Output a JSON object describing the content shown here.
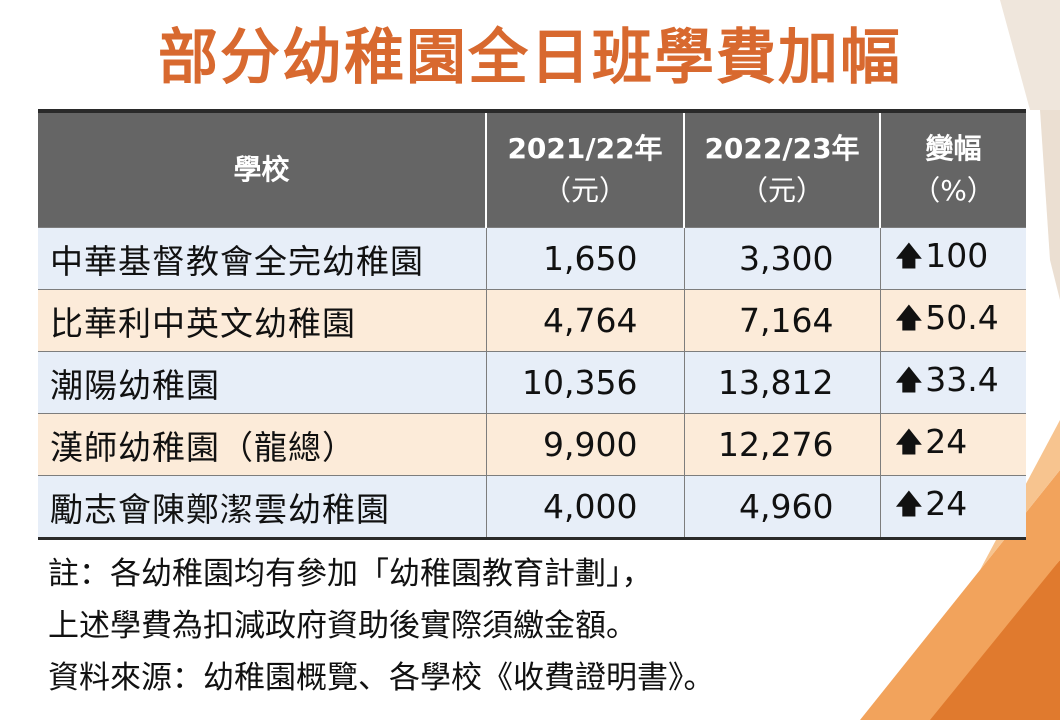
{
  "title": "部分幼稚園全日班學費加幅",
  "table": {
    "headers": [
      {
        "line1": "學校",
        "line2": ""
      },
      {
        "line1": "2021/22年",
        "line2": "（元）"
      },
      {
        "line1": "2022/23年",
        "line2": "（元）"
      },
      {
        "line1": "變幅",
        "line2": "（%）"
      }
    ],
    "rows": [
      {
        "school": "中華基督教會全完幼稚園",
        "fee_2021_22": "1,650",
        "fee_2022_23": "3,300",
        "change": "100"
      },
      {
        "school": "比華利中英文幼稚園",
        "fee_2021_22": "4,764",
        "fee_2022_23": "7,164",
        "change": "50.4"
      },
      {
        "school": "潮陽幼稚園",
        "fee_2021_22": "10,356",
        "fee_2022_23": "13,812",
        "change": "33.4"
      },
      {
        "school": "漢師幼稚園（龍總）",
        "fee_2021_22": "9,900",
        "fee_2022_23": "12,276",
        "change": "24"
      },
      {
        "school": "勵志會陳鄭潔雲幼稚園",
        "fee_2021_22": "4,000",
        "fee_2022_23": "4,960",
        "change": "24"
      }
    ],
    "change_icon": "up-arrow-icon"
  },
  "notes": [
    "註：各幼稚園均有參加「幼稚園教育計劃」，",
    "上述學費為扣減政府資助後實際須繳金額。",
    "資料來源：幼稚園概覽、各學校《收費證明書》。"
  ],
  "colors": {
    "title": "#d8692f",
    "header_bg": "#656565",
    "row_blue": "#e7eef8",
    "row_peach": "#fcebd9"
  }
}
